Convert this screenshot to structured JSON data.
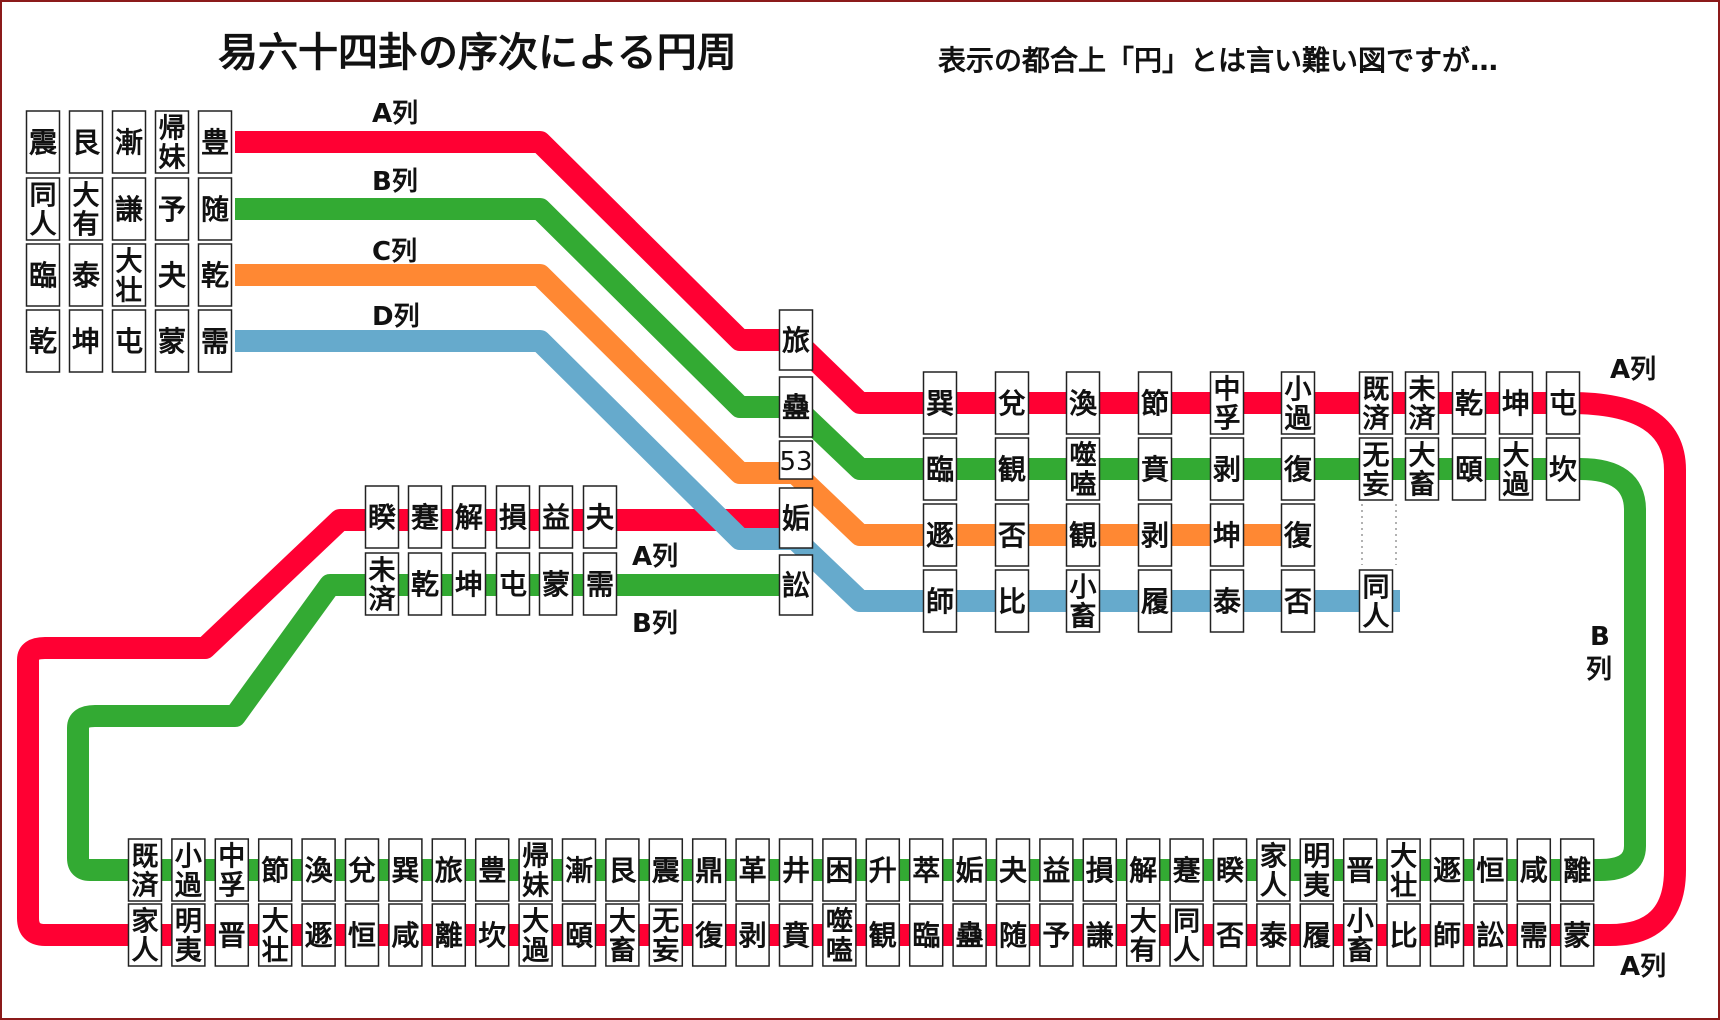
{
  "title": "易六十四卦の序次による円周",
  "subtitle": "表示の都合上「円」とは言い難い図ですが…",
  "line_labels": {
    "a": "A列",
    "b": "B列",
    "c": "C列",
    "d": "D列",
    "b_vertical": [
      "B",
      "列"
    ]
  },
  "colors": {
    "A": "#ff0033",
    "B": "#33aa33",
    "C": "#ff8833",
    "D": "#66aacc"
  },
  "left_grid": [
    [
      "震",
      "同人",
      "臨",
      "乾"
    ],
    [
      "艮",
      "大有",
      "泰",
      "坤"
    ],
    [
      "漸",
      "謙",
      "大壮",
      "屯"
    ],
    [
      "帰妹",
      "予",
      "夬",
      "蒙"
    ],
    [
      "豊",
      "随",
      "乾",
      "需"
    ]
  ],
  "middle_stack": [
    "旅",
    "蠱",
    "53",
    "姤",
    "訟"
  ],
  "upper_right": [
    [
      "巽",
      "臨",
      "遯",
      "師"
    ],
    [
      "兌",
      "観",
      "否",
      "比"
    ],
    [
      "渙",
      "噬嗑",
      "観",
      "小畜"
    ],
    [
      "節",
      "賁",
      "剥",
      "履"
    ],
    [
      "中孚",
      "剥",
      "坤",
      "泰"
    ],
    [
      "小過",
      "復",
      "復",
      "否"
    ],
    [
      "既済",
      "无妄",
      "",
      "同人"
    ],
    [
      "未済",
      "大畜"
    ],
    [
      "乾",
      "頤"
    ],
    [
      "坤",
      "大過"
    ],
    [
      "屯",
      "坎"
    ]
  ],
  "mid_left": [
    [
      "睽",
      "未済"
    ],
    [
      "蹇",
      "乾"
    ],
    [
      "解",
      "坤"
    ],
    [
      "損",
      "屯"
    ],
    [
      "益",
      "蒙"
    ],
    [
      "夬",
      "需"
    ]
  ],
  "bottom": [
    [
      "既済",
      "家人"
    ],
    [
      "小過",
      "明夷"
    ],
    [
      "中孚",
      "晋"
    ],
    [
      "節",
      "大壮"
    ],
    [
      "渙",
      "遯"
    ],
    [
      "兌",
      "恒"
    ],
    [
      "巽",
      "咸"
    ],
    [
      "旅",
      "離"
    ],
    [
      "豊",
      "坎"
    ],
    [
      "帰妹",
      "大過"
    ],
    [
      "漸",
      "頤"
    ],
    [
      "艮",
      "大畜"
    ],
    [
      "震",
      "无妄"
    ],
    [
      "鼎",
      "復"
    ],
    [
      "革",
      "剥"
    ],
    [
      "井",
      "賁"
    ],
    [
      "困",
      "噬嗑"
    ],
    [
      "升",
      "観"
    ],
    [
      "萃",
      "臨"
    ],
    [
      "姤",
      "蠱"
    ],
    [
      "夬",
      "随"
    ],
    [
      "益",
      "予"
    ],
    [
      "損",
      "謙"
    ],
    [
      "解",
      "大有"
    ],
    [
      "蹇",
      "同人"
    ],
    [
      "睽",
      "否"
    ],
    [
      "家人",
      "泰"
    ],
    [
      "明夷",
      "履"
    ],
    [
      "晋",
      "小畜"
    ],
    [
      "大壮",
      "比"
    ],
    [
      "遯",
      "師"
    ],
    [
      "恒",
      "訟"
    ],
    [
      "咸",
      "需"
    ],
    [
      "離",
      "蒙"
    ]
  ]
}
